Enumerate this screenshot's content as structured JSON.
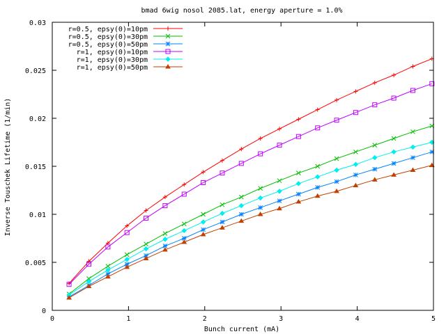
{
  "chart_data": {
    "type": "line",
    "title": "bmad 6wig nosol 2085.lat, energy aperture = 1.0%",
    "xlabel": "Bunch current (mA)",
    "ylabel": "Inverse Touschek Lifetime (1/min)",
    "xlim": [
      0,
      5
    ],
    "ylim": [
      0,
      0.03
    ],
    "x_ticks": [
      0,
      1,
      2,
      3,
      4,
      5
    ],
    "x_tick_labels": [
      "0",
      "1",
      "2",
      "3",
      "4",
      "5"
    ],
    "y_ticks": [
      0,
      0.005,
      0.01,
      0.015,
      0.02,
      0.025,
      0.03
    ],
    "y_tick_labels": [
      "0",
      "0.005",
      "0.01",
      "0.015",
      "0.02",
      "0.025",
      "0.03"
    ],
    "grid": false,
    "legend_position": "top-left",
    "x": [
      0.22,
      0.48,
      0.73,
      0.98,
      1.23,
      1.48,
      1.73,
      1.98,
      2.23,
      2.48,
      2.73,
      2.98,
      3.23,
      3.48,
      3.73,
      3.98,
      4.23,
      4.48,
      4.73,
      4.98
    ],
    "series": [
      {
        "name": "r=0.5, epsy(0)=10pm",
        "color": "#ff0000",
        "marker": "plus",
        "values": [
          0.0028,
          0.0051,
          0.007,
          0.0088,
          0.0104,
          0.0118,
          0.0131,
          0.0144,
          0.0156,
          0.0168,
          0.0179,
          0.0189,
          0.0199,
          0.0209,
          0.0219,
          0.0228,
          0.0237,
          0.0245,
          0.0254,
          0.0262
        ]
      },
      {
        "name": "r=0.5, epsy(0)=30pm",
        "color": "#00c000",
        "marker": "cross",
        "values": [
          0.0017,
          0.0033,
          0.0046,
          0.0058,
          0.0069,
          0.008,
          0.009,
          0.01,
          0.011,
          0.0118,
          0.0127,
          0.0135,
          0.0143,
          0.015,
          0.0158,
          0.0165,
          0.0172,
          0.0179,
          0.0186,
          0.0192
        ]
      },
      {
        "name": "r=0.5, epsy(0)=50pm",
        "color": "#0080ff",
        "marker": "star",
        "values": [
          0.0014,
          0.0026,
          0.0038,
          0.0048,
          0.0057,
          0.0067,
          0.0075,
          0.0084,
          0.0092,
          0.01,
          0.0107,
          0.0114,
          0.0121,
          0.0128,
          0.0134,
          0.0141,
          0.0147,
          0.0153,
          0.0159,
          0.0165
        ]
      },
      {
        "name": "r=1, epsy(0)=10pm",
        "color": "#c000ff",
        "marker": "box",
        "values": [
          0.0027,
          0.0048,
          0.0066,
          0.0081,
          0.0096,
          0.0109,
          0.0121,
          0.0133,
          0.0143,
          0.0153,
          0.0163,
          0.0172,
          0.0181,
          0.019,
          0.0198,
          0.0206,
          0.0214,
          0.0221,
          0.0229,
          0.0236
        ]
      },
      {
        "name": "r=1, epsy(0)=30pm",
        "color": "#00eeee",
        "marker": "diamond",
        "values": [
          0.0016,
          0.003,
          0.0042,
          0.0053,
          0.0064,
          0.0074,
          0.0083,
          0.0092,
          0.0101,
          0.0109,
          0.0117,
          0.0124,
          0.0132,
          0.0139,
          0.0146,
          0.0152,
          0.0159,
          0.0165,
          0.017,
          0.0175
        ]
      },
      {
        "name": "r=1, epsy(0)=50pm",
        "color": "#c04000",
        "marker": "triangle",
        "values": [
          0.0013,
          0.0025,
          0.0035,
          0.0045,
          0.0054,
          0.0063,
          0.0071,
          0.0079,
          0.0086,
          0.0093,
          0.01,
          0.0106,
          0.0113,
          0.0119,
          0.0124,
          0.013,
          0.0136,
          0.0141,
          0.0146,
          0.0151
        ]
      }
    ]
  }
}
